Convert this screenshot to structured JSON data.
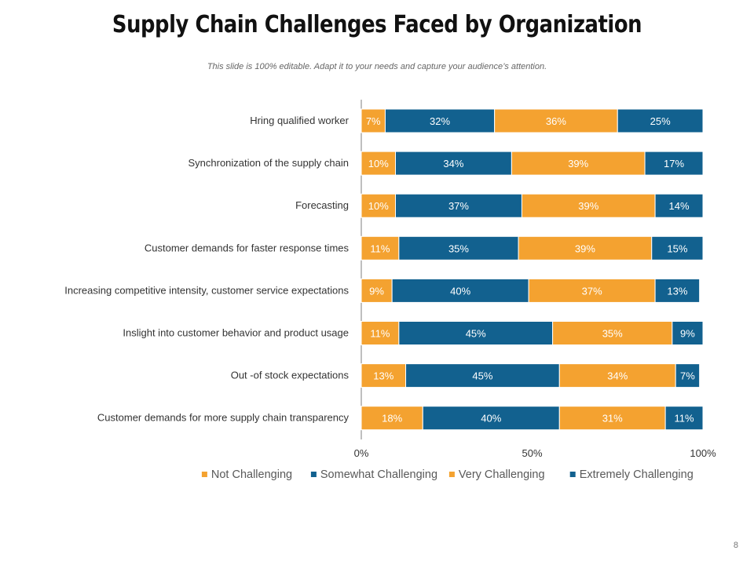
{
  "slide": {
    "title": "Supply Chain Challenges Faced by Organization",
    "subtitle": "This slide is 100% editable. Adapt it to your needs and capture your audience’s attention.",
    "page_number": "8"
  },
  "colors": {
    "orange": "#F4A230",
    "blue": "#12618F",
    "axis": "#595959",
    "text": "#333333"
  },
  "chart_data": {
    "type": "bar",
    "orientation": "horizontal",
    "stacked": "100%",
    "title": "Supply Chain Challenges Faced by Organization",
    "categories": [
      "Hring qualified worker",
      "Synchronization of the supply chain",
      "Forecasting",
      "Customer demands for faster response times",
      "Increasing competitive intensity, customer service expectations",
      "Inslight into customer behavior and product usage",
      "Out -of stock expectations",
      "Customer demands for more supply chain transparency"
    ],
    "series": [
      {
        "name": "Not Challenging",
        "color": "#F4A230",
        "values": [
          7,
          10,
          10,
          11,
          9,
          11,
          13,
          18
        ],
        "labels": [
          "7%",
          "10%",
          "10%",
          "11%",
          "9%",
          "11%",
          "13%",
          "18%"
        ]
      },
      {
        "name": "Somewhat Challenging",
        "color": "#12618F",
        "values": [
          32,
          34,
          37,
          35,
          40,
          45,
          45,
          40
        ],
        "labels": [
          "32%",
          "34%",
          "37%",
          "35%",
          "40%",
          "45%",
          "45%",
          "40%"
        ]
      },
      {
        "name": "Very  Challenging",
        "color": "#F4A230",
        "values": [
          36,
          39,
          39,
          39,
          37,
          35,
          34,
          31
        ],
        "labels": [
          "36%",
          "39%",
          "39%",
          "39%",
          "37%",
          "35%",
          "34%",
          "31%"
        ]
      },
      {
        "name": "Extremely Challenging",
        "color": "#12618F",
        "values": [
          25,
          17,
          14,
          15,
          13,
          9,
          7,
          11
        ],
        "labels": [
          "25%",
          "17%",
          "14%",
          "15%",
          "13%",
          "9%",
          "7%",
          "11%"
        ]
      }
    ],
    "xlim": [
      0,
      100
    ],
    "xticks": [
      0,
      50,
      100
    ],
    "xtick_labels": [
      "0%",
      "50%",
      "100%"
    ],
    "legend": "bottom",
    "grid": false
  }
}
